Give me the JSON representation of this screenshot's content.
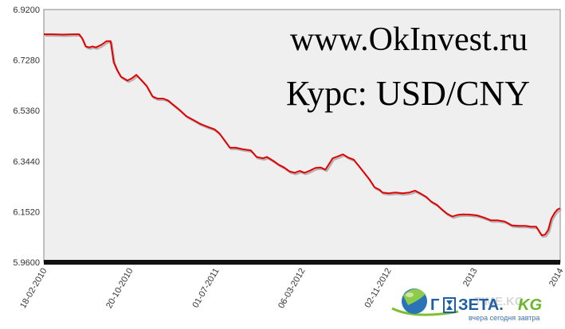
{
  "chart_data": {
    "type": "line",
    "title": "Курс: USD/CNY",
    "watermark": "www.OkInvest.ru",
    "xlabel": "",
    "ylabel": "",
    "ylim": [
      5.96,
      6.92
    ],
    "y_ticks": [
      "6.9200",
      "6.7280",
      "6.5360",
      "6.3440",
      "6.1520",
      "5.9600"
    ],
    "x_ticks": [
      "18-02-2010",
      "20-10-2010",
      "01-07-2011",
      "06-03-2012",
      "02-11-2012",
      "2013",
      "2014"
    ],
    "grid": false,
    "series": [
      {
        "name": "",
        "color": "#e00000",
        "x": [
          "2010-02-18",
          "2010-03-15",
          "2010-04-15",
          "2010-05-15",
          "2010-06-01",
          "2010-06-10",
          "2010-06-20",
          "2010-07-01",
          "2010-07-10",
          "2010-07-20",
          "2010-08-05",
          "2010-08-20",
          "2010-09-01",
          "2010-09-10",
          "2010-09-20",
          "2010-10-01",
          "2010-10-20",
          "2010-11-01",
          "2010-11-15",
          "2010-12-01",
          "2010-12-15",
          "2011-01-01",
          "2011-01-15",
          "2011-02-01",
          "2011-02-15",
          "2011-03-01",
          "2011-03-20",
          "2011-04-10",
          "2011-05-01",
          "2011-05-20",
          "2011-06-10",
          "2011-07-01",
          "2011-07-15",
          "2011-08-01",
          "2011-08-15",
          "2011-09-01",
          "2011-09-20",
          "2011-10-15",
          "2011-11-01",
          "2011-11-20",
          "2011-12-01",
          "2011-12-20",
          "2012-01-05",
          "2012-01-20",
          "2012-02-05",
          "2012-02-20",
          "2012-03-06",
          "2012-03-20",
          "2012-04-05",
          "2012-04-20",
          "2012-05-05",
          "2012-05-20",
          "2012-06-10",
          "2012-06-25",
          "2012-07-10",
          "2012-07-25",
          "2012-08-10",
          "2012-08-25",
          "2012-09-10",
          "2012-09-25",
          "2012-10-10",
          "2012-10-25",
          "2012-11-02",
          "2012-11-20",
          "2012-12-10",
          "2013-01-01",
          "2013-01-20",
          "2013-02-05",
          "2013-02-20",
          "2013-03-10",
          "2013-03-25",
          "2013-04-10",
          "2013-04-25",
          "2013-05-10",
          "2013-05-25",
          "2013-06-10",
          "2013-06-25",
          "2013-07-15",
          "2013-08-05",
          "2013-08-25",
          "2013-09-15",
          "2013-10-05",
          "2013-10-25",
          "2013-11-15",
          "2013-12-05",
          "2013-12-25",
          "2014-01-10",
          "2014-01-25",
          "2014-02-10",
          "2014-02-20",
          "2014-03-01",
          "2014-03-10",
          "2014-03-20",
          "2014-03-28",
          "2014-04-05"
        ],
        "y": [
          6.826,
          6.826,
          6.825,
          6.826,
          6.826,
          6.81,
          6.78,
          6.776,
          6.78,
          6.776,
          6.786,
          6.8,
          6.8,
          6.72,
          6.69,
          6.665,
          6.65,
          6.658,
          6.672,
          6.65,
          6.63,
          6.59,
          6.582,
          6.582,
          6.575,
          6.56,
          6.54,
          6.515,
          6.5,
          6.486,
          6.475,
          6.465,
          6.45,
          6.42,
          6.395,
          6.395,
          6.39,
          6.385,
          6.36,
          6.355,
          6.36,
          6.345,
          6.33,
          6.32,
          6.305,
          6.3,
          6.307,
          6.3,
          6.308,
          6.318,
          6.32,
          6.312,
          6.355,
          6.362,
          6.37,
          6.358,
          6.35,
          6.326,
          6.3,
          6.275,
          6.245,
          6.235,
          6.225,
          6.222,
          6.225,
          6.222,
          6.225,
          6.232,
          6.222,
          6.208,
          6.19,
          6.178,
          6.16,
          6.144,
          6.134,
          6.14,
          6.142,
          6.141,
          6.138,
          6.13,
          6.119,
          6.119,
          6.115,
          6.1,
          6.098,
          6.098,
          6.095,
          6.095,
          6.062,
          6.065,
          6.083,
          6.125,
          6.148,
          6.16,
          6.165
        ]
      }
    ]
  },
  "logo": {
    "name_left": "Г",
    "name_mid": "ЗЕТА.",
    "name_right": "KG",
    "tagline": "вчера сегодня завтра",
    "faded_text": "TIME.KG",
    "colors": {
      "globe_light": "#8ecb4a",
      "globe_dark": "#2a73b8",
      "swoosh": "#7cbf2f",
      "text_dark": "#1f5fa6",
      "kg_green": "#6bb52a"
    }
  },
  "colors": {
    "plot_bg": "#efefef",
    "axis_dark": "#111111",
    "watermark_url": "#c5cbe0",
    "watermark_title": "#2e3e8e",
    "line": "#e00000",
    "line_shadow": "#b0b0b0"
  }
}
